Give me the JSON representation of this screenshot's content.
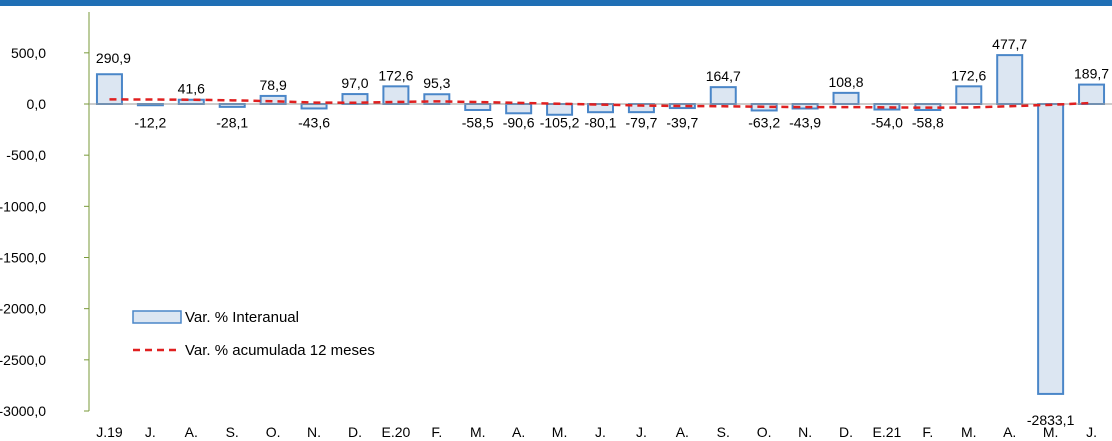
{
  "chart_data": {
    "type": "bar",
    "categories": [
      "J.19",
      "J.",
      "A.",
      "S.",
      "O.",
      "N.",
      "D.",
      "E.20",
      "F.",
      "M.",
      "A.",
      "M.",
      "J.",
      "J.",
      "A.",
      "S.",
      "O.",
      "N.",
      "D.",
      "E.21",
      "F.",
      "M.",
      "A.",
      "M.",
      "J."
    ],
    "series": [
      {
        "name": "Var. % Interanual",
        "type": "bar",
        "values": [
          290.9,
          -12.2,
          41.6,
          -28.1,
          78.9,
          -43.6,
          97.0,
          172.6,
          95.3,
          -58.5,
          -90.6,
          -105.2,
          -80.1,
          -79.7,
          -39.7,
          164.7,
          -63.2,
          -43.9,
          108.8,
          -54.0,
          -58.8,
          172.6,
          477.7,
          -2833.1,
          189.7
        ],
        "labels": [
          "290,9",
          "-12,2",
          "41,6",
          "-28,1",
          "78,9",
          "-43,6",
          "97,0",
          "172,6",
          "95,3",
          "-58,5",
          "-90,6",
          "-105,2",
          "-80,1",
          "-79,7",
          "-39,7",
          "164,7",
          "-63,2",
          "-43,9",
          "108,8",
          "-54,0",
          "-58,8",
          "172,6",
          "477,7",
          "-2833,1",
          "189,7"
        ],
        "color": "#4a86c8",
        "fill": "#dce6f2"
      },
      {
        "name": "Var. % acumulada 12 meses",
        "type": "line",
        "style": "dashed",
        "values": [
          45,
          44,
          42,
          36,
          27,
          14,
          12,
          20,
          26,
          19,
          11,
          3,
          -6,
          -15,
          -20,
          -22,
          -27,
          -31,
          -30,
          -33,
          -36,
          -34,
          -22,
          -8,
          10
        ],
        "color": "#e02020"
      }
    ],
    "yticks": [
      "500,0",
      "0,0",
      "-500,0",
      "-1000,0",
      "-1500,0",
      "-2000,0",
      "-2500,0",
      "-3000,0"
    ],
    "ytick_values": [
      500,
      0,
      -500,
      -1000,
      -1500,
      -2000,
      -2500,
      -3000
    ],
    "ylim": [
      -3000,
      600
    ],
    "title": "",
    "xlabel": "",
    "ylabel": "",
    "legend_position": "bottom-left",
    "grid": false,
    "header_color": "#1f6fb5"
  }
}
